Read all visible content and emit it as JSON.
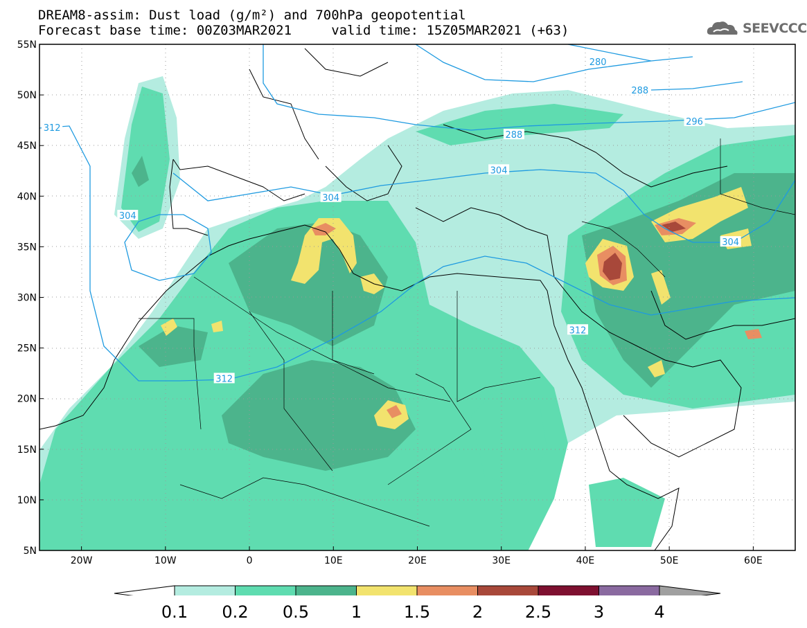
{
  "header": {
    "line1": "DREAM8-assim: Dust load (g/m²) and 700hPa geopotential",
    "line2": "Forecast base time: 00Z03MAR2021     valid time: 15Z05MAR2021 (+63)"
  },
  "logo": {
    "text": "SEEVCCC",
    "icon": "cloud-icon"
  },
  "map": {
    "lon_range": [
      -25,
      65
    ],
    "lat_range": [
      5,
      55
    ],
    "lat_ticks": [
      {
        "v": 55,
        "label": "55N"
      },
      {
        "v": 50,
        "label": "50N"
      },
      {
        "v": 45,
        "label": "45N"
      },
      {
        "v": 40,
        "label": "40N"
      },
      {
        "v": 35,
        "label": "35N"
      },
      {
        "v": 30,
        "label": "30N"
      },
      {
        "v": 25,
        "label": "25N"
      },
      {
        "v": 20,
        "label": "20N"
      },
      {
        "v": 15,
        "label": "15N"
      },
      {
        "v": 10,
        "label": "10N"
      },
      {
        "v": 5,
        "label": "5N"
      }
    ],
    "lon_ticks": [
      {
        "v": -20,
        "label": "20W"
      },
      {
        "v": -10,
        "label": "10W"
      },
      {
        "v": 0,
        "label": "0"
      },
      {
        "v": 10,
        "label": "10E"
      },
      {
        "v": 20,
        "label": "20E"
      },
      {
        "v": 30,
        "label": "30E"
      },
      {
        "v": 40,
        "label": "40E"
      },
      {
        "v": 50,
        "label": "50E"
      },
      {
        "v": 60,
        "label": "60E"
      }
    ],
    "contour_labels": [
      {
        "text": "280",
        "lon": 41.5,
        "lat": 53.3
      },
      {
        "text": "288",
        "lon": 46.5,
        "lat": 50.5
      },
      {
        "text": "296",
        "lon": 53,
        "lat": 47.4
      },
      {
        "text": "288",
        "lon": 31.5,
        "lat": 46.1
      },
      {
        "text": "312",
        "lon": -23.5,
        "lat": 46.8
      },
      {
        "text": "304",
        "lon": -14.5,
        "lat": 38.1
      },
      {
        "text": "304",
        "lon": 9.7,
        "lat": 39.9
      },
      {
        "text": "304",
        "lon": 29.7,
        "lat": 42.6
      },
      {
        "text": "304",
        "lon": 57.3,
        "lat": 35.5
      },
      {
        "text": "312",
        "lon": 39.1,
        "lat": 26.8
      },
      {
        "text": "312",
        "lon": -3,
        "lat": 22.0
      }
    ]
  },
  "colorbar": {
    "labels": [
      "0.1",
      "0.2",
      "0.5",
      "1",
      "1.5",
      "2",
      "2.5",
      "3",
      "4"
    ],
    "colors": [
      "#ffffff",
      "#b4ece0",
      "#5fdcb0",
      "#4cb48c",
      "#f2e36e",
      "#e88e62",
      "#a8483a",
      "#7e1030",
      "#8a6aa0",
      "#a0a0a0"
    ]
  }
}
